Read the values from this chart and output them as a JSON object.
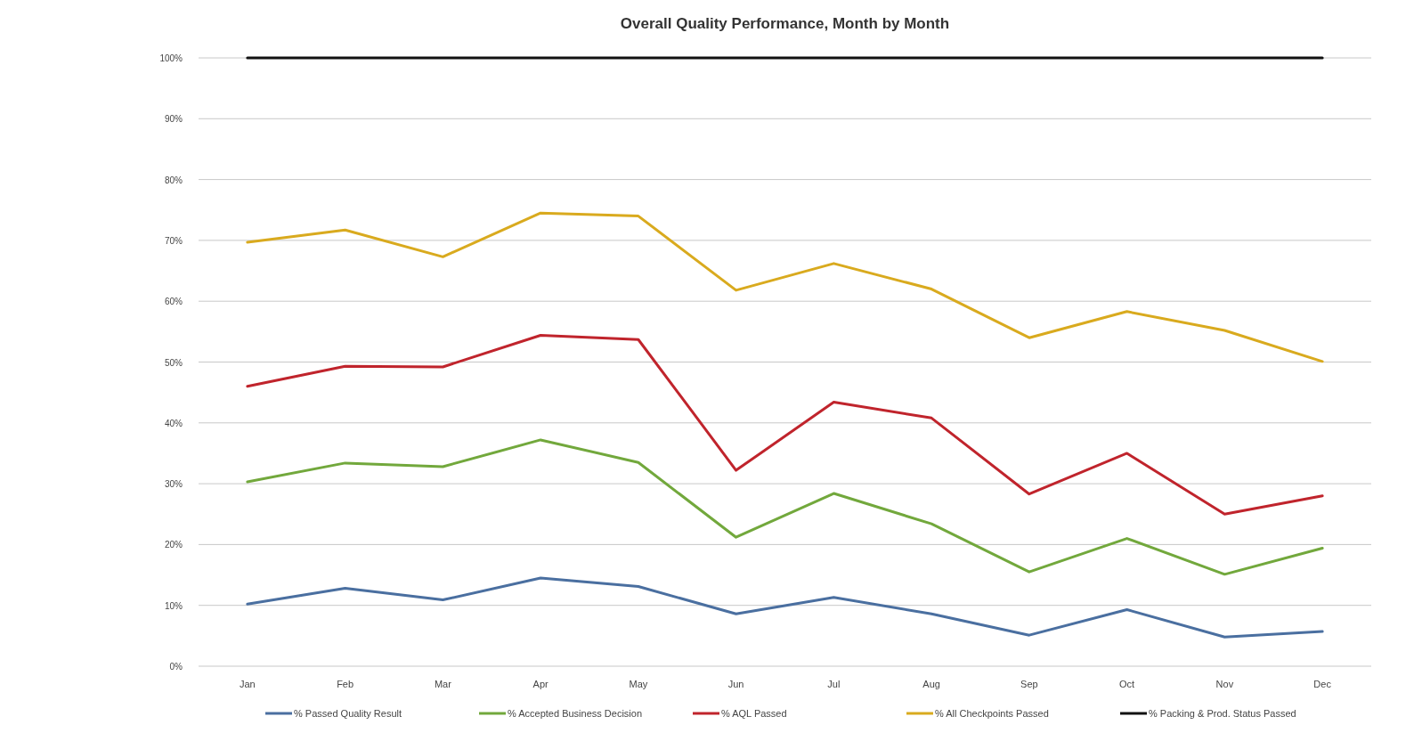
{
  "chart_data": {
    "type": "line",
    "title": "Overall Quality Performance, Month by Month",
    "categories": [
      "Jan",
      "Feb",
      "Mar",
      "Apr",
      "May",
      "Jun",
      "Jul",
      "Aug",
      "Sep",
      "Oct",
      "Nov",
      "Dec"
    ],
    "series": [
      {
        "name": "% Passed Quality Result",
        "color": "#4a6fa0",
        "values": [
          10.2,
          12.8,
          10.9,
          14.5,
          13.1,
          8.6,
          11.3,
          8.6,
          5.1,
          9.3,
          4.8,
          5.7
        ]
      },
      {
        "name": "% Accepted Business Decision",
        "color": "#72a83c",
        "values": [
          30.3,
          33.4,
          32.8,
          37.2,
          33.5,
          21.2,
          28.4,
          23.4,
          15.5,
          21.0,
          15.1,
          19.4
        ]
      },
      {
        "name": "% AQL Passed",
        "color": "#c0242c",
        "values": [
          46.0,
          49.3,
          49.2,
          54.4,
          53.7,
          32.2,
          43.4,
          40.8,
          28.3,
          35.0,
          25.0,
          28.0
        ]
      },
      {
        "name": "% All Checkpoints Passed",
        "color": "#d9aa1e",
        "values": [
          69.7,
          71.7,
          67.3,
          74.5,
          74.0,
          61.8,
          66.2,
          62.0,
          54.0,
          58.3,
          55.2,
          50.1
        ]
      },
      {
        "name": "% Packing & Prod. Status Passed",
        "color": "#111111",
        "values": [
          100,
          100,
          100,
          100,
          100,
          100,
          100,
          100,
          100,
          100,
          100,
          100
        ]
      }
    ],
    "ylim": [
      0,
      100
    ],
    "yticks": [
      {
        "value": 0,
        "label": "0%"
      },
      {
        "value": 10,
        "label": "10%"
      },
      {
        "value": 20,
        "label": "20%"
      },
      {
        "value": 30,
        "label": "30%"
      },
      {
        "value": 40,
        "label": "40%"
      },
      {
        "value": 50,
        "label": "50%"
      },
      {
        "value": 60,
        "label": "60%"
      },
      {
        "value": 70,
        "label": "70%"
      },
      {
        "value": 80,
        "label": "80%"
      },
      {
        "value": 90,
        "label": "90%"
      },
      {
        "value": 100,
        "label": "100%"
      }
    ],
    "grid": "y",
    "legend": "bottom"
  }
}
